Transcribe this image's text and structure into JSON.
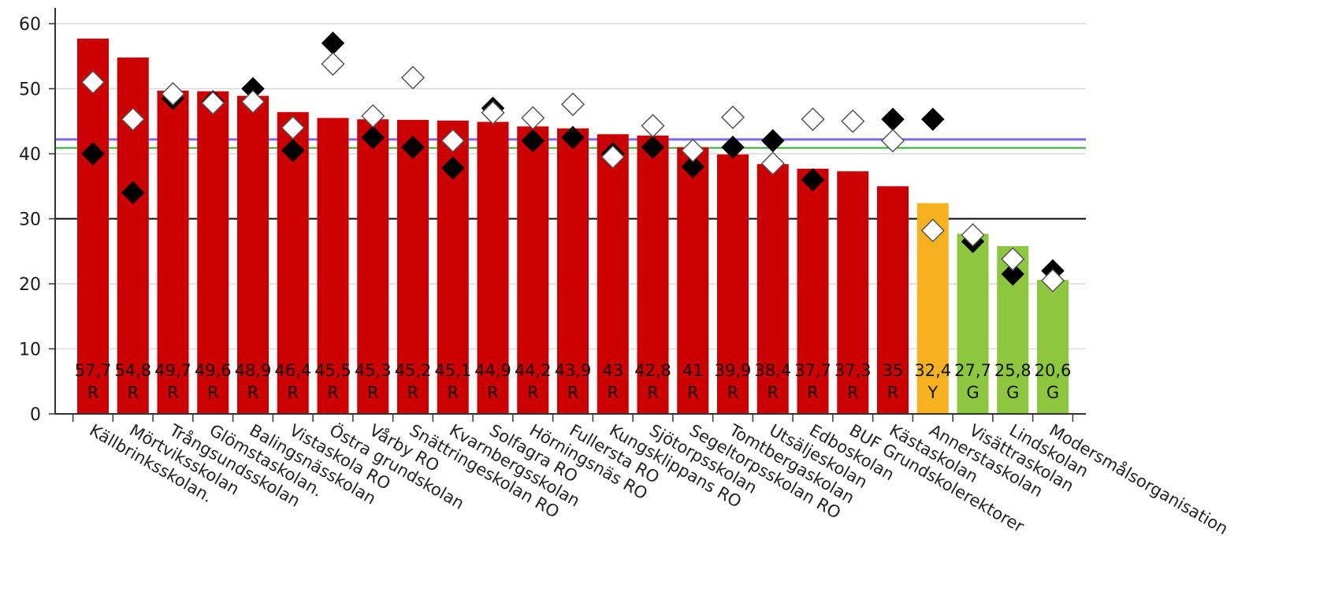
{
  "chart_data": {
    "type": "bar",
    "title": "",
    "xlabel": "",
    "ylabel": "",
    "ylim": [
      0,
      60
    ],
    "yticks": [
      0,
      10,
      20,
      30,
      40,
      50,
      60
    ],
    "grid": true,
    "categories": [
      "Källbrinksskolan.",
      "Mörtviksskolan",
      "Trångsundsskolan",
      "Glömstaskolan.",
      "Balingsnässkolan",
      "Vistaskola RO",
      "Östra grundskolan",
      "Vårby RO",
      "Snättringeskolan RO",
      "Kvarnbergsskolan",
      "Solfagra RO",
      "Hörningsnäs RO",
      "Fullersta RO",
      "Kungsklippans RO",
      "Sjötorpsskolan",
      "Segeltorpsskolan RO",
      "Tomtbergaskolan",
      "Utsäljeskolan",
      "Edboskolan",
      "BUF Grundskolerektorer",
      "Kästaskolan",
      "Annerstaskolan",
      "Visättraskolan",
      "Lindskolan",
      "Modersmålsorganisation"
    ],
    "values": [
      57.7,
      54.8,
      49.7,
      49.6,
      48.9,
      46.4,
      45.5,
      45.3,
      45.2,
      45.1,
      44.9,
      44.2,
      43.9,
      43,
      42.8,
      41,
      39.9,
      38.4,
      37.7,
      37.3,
      35,
      32.4,
      27.7,
      25.8,
      20.6
    ],
    "value_labels": [
      "57,7",
      "54,8",
      "49,7",
      "49,6",
      "48,9",
      "46,4",
      "45,5",
      "45,3",
      "45,2",
      "45,1",
      "44,9",
      "44,2",
      "43,9",
      "43",
      "42,8",
      "41",
      "39,9",
      "38,4",
      "37,7",
      "37,3",
      "35",
      "32,4",
      "27,7",
      "25,8",
      "20,6"
    ],
    "status_codes": [
      "R",
      "R",
      "R",
      "R",
      "R",
      "R",
      "R",
      "R",
      "R",
      "R",
      "R",
      "R",
      "R",
      "R",
      "R",
      "R",
      "R",
      "R",
      "R",
      "R",
      "R",
      "Y",
      "G",
      "G",
      "G"
    ],
    "status_colors": {
      "R": "#cc0000",
      "Y": "#f9b21f",
      "G": "#8dc63f"
    },
    "markers": {
      "filled_diamond": [
        40,
        34,
        48.5,
        48,
        50,
        40.5,
        57,
        42.5,
        41,
        37.8,
        47,
        42,
        42.5,
        40,
        41,
        38,
        41,
        42,
        36,
        null,
        45.3,
        45.3,
        26.5,
        21.5,
        22
      ],
      "open_diamond": [
        51,
        45.3,
        49.2,
        47.8,
        48,
        44,
        53.8,
        45.8,
        51.7,
        42,
        46.3,
        45.5,
        47.6,
        39.5,
        44.3,
        40.5,
        45.6,
        38.5,
        45.3,
        45,
        42,
        28.2,
        27.5,
        23.8,
        20.5
      ]
    },
    "reference_lines": [
      {
        "value": 42.2,
        "color": "#7b68ee"
      },
      {
        "value": 40.9,
        "color": "#33aa33"
      },
      {
        "value": 30,
        "color": "#000000"
      }
    ]
  }
}
